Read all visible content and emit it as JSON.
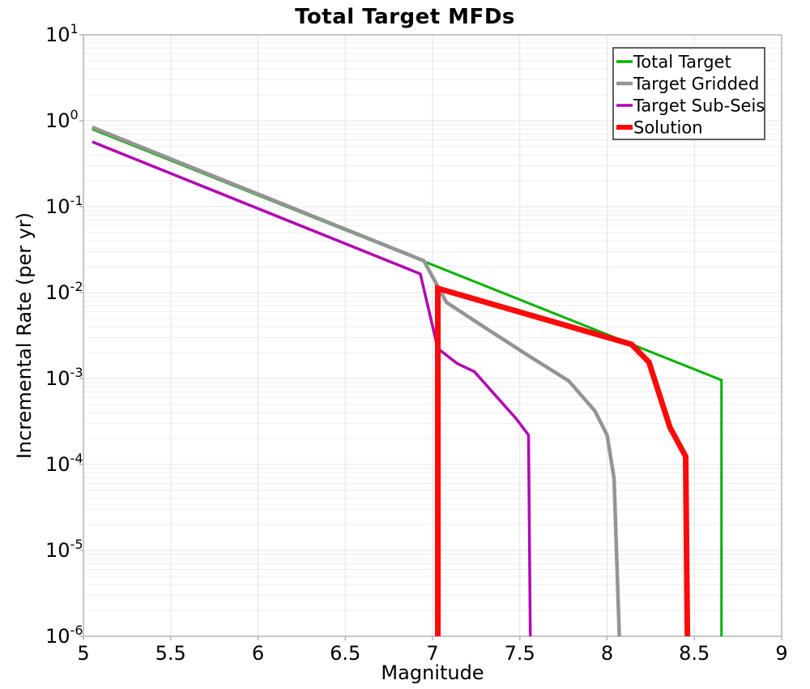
{
  "chart_data": {
    "type": "line",
    "title": "Total Target MFDs",
    "xlabel": "Magnitude",
    "ylabel": "Incremental Rate (per yr)",
    "x_axis": {
      "min": 5,
      "max": 9,
      "ticks": [
        5,
        5.5,
        6,
        6.5,
        7,
        7.5,
        8,
        8.5,
        9
      ],
      "tick_labels": [
        "5",
        "5.5",
        "6",
        "6.5",
        "7",
        "7.5",
        "8",
        "8.5",
        "9"
      ]
    },
    "y_axis": {
      "scale": "log",
      "min_exp": -6,
      "max_exp": 1,
      "tick_exponents": [
        1,
        0,
        -1,
        -2,
        -3,
        -4,
        -5,
        -6
      ],
      "tick_base": "10"
    },
    "grid": {
      "show": true,
      "minor_color": "#eeeeee",
      "major_color": "#e3e3e3",
      "frame_color": "#b4b4b4"
    },
    "legend": {
      "position": "top-right",
      "border_color": "#5f5f5f",
      "background": "#ffffff"
    },
    "series": [
      {
        "name": "Total Target",
        "color": "#00b300",
        "line_width": 3,
        "legend_line_width": 3.5,
        "points": [
          [
            5.05,
            0.8
          ],
          [
            8.655,
            0.00096
          ],
          [
            8.655,
            1e-06
          ]
        ]
      },
      {
        "name": "Target Gridded",
        "color": "#949494",
        "line_width": 4.5,
        "legend_line_width": 4.5,
        "points": [
          [
            5.05,
            0.84
          ],
          [
            6.95,
            0.0235
          ],
          [
            7.08,
            0.0077
          ],
          [
            7.31,
            0.0038
          ],
          [
            7.54,
            0.0019
          ],
          [
            7.78,
            0.00094
          ],
          [
            7.93,
            0.00042
          ],
          [
            8.0,
            0.00022
          ],
          [
            8.04,
            6.9e-05
          ],
          [
            8.07,
            1e-06
          ]
        ]
      },
      {
        "name": "Target Sub-Seis",
        "color": "#b303b3",
        "line_width": 3.5,
        "legend_line_width": 3.5,
        "points": [
          [
            5.05,
            0.57
          ],
          [
            6.93,
            0.0165
          ],
          [
            7.03,
            0.00224
          ],
          [
            7.14,
            0.0015
          ],
          [
            7.24,
            0.0012
          ],
          [
            7.48,
            0.00034
          ],
          [
            7.55,
            0.00022
          ],
          [
            7.56,
            1e-06
          ]
        ]
      },
      {
        "name": "Solution",
        "color": "#fb0a0a",
        "line_width": 7,
        "legend_line_width": 6,
        "points": [
          [
            7.03,
            1e-06
          ],
          [
            7.03,
            0.0112
          ],
          [
            8.14,
            0.0025
          ],
          [
            8.24,
            0.00155
          ],
          [
            8.36,
            0.00027
          ],
          [
            8.45,
            0.000124
          ],
          [
            8.46,
            1e-06
          ]
        ]
      }
    ]
  }
}
